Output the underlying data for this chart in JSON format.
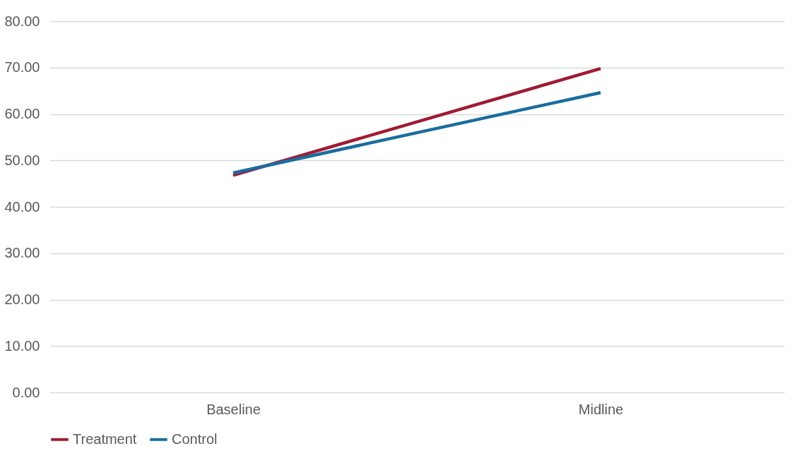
{
  "chart_data": {
    "type": "line",
    "categories": [
      "Baseline",
      "Midline"
    ],
    "series": [
      {
        "name": "Treatment",
        "color": "#9e1b32",
        "values": [
          46.8,
          69.8
        ]
      },
      {
        "name": "Control",
        "color": "#1a6d9e",
        "values": [
          47.3,
          64.6
        ]
      }
    ],
    "ylim": [
      0,
      80
    ],
    "yticks": [
      {
        "value": 0,
        "label": "0.00"
      },
      {
        "value": 10,
        "label": "10.00"
      },
      {
        "value": 20,
        "label": "20.00"
      },
      {
        "value": 30,
        "label": "30.00"
      },
      {
        "value": 40,
        "label": "40.00"
      },
      {
        "value": 50,
        "label": "50.00"
      },
      {
        "value": 60,
        "label": "60.00"
      },
      {
        "value": 70,
        "label": "70.00"
      },
      {
        "value": 80,
        "label": "80.00"
      }
    ],
    "grid": "y",
    "legend": "bottom",
    "marker": "none",
    "line_style": "solid"
  }
}
